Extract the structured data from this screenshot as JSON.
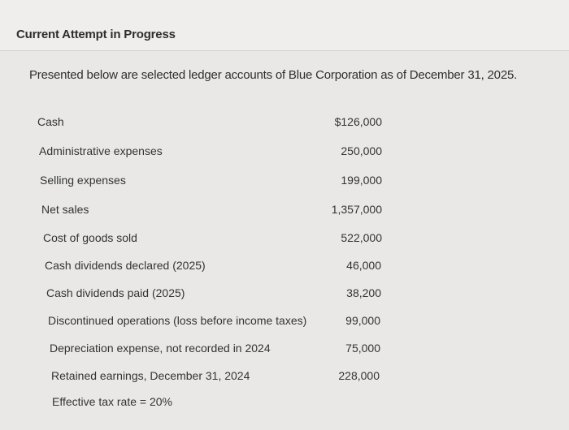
{
  "header": {
    "title": "Current Attempt in Progress"
  },
  "problem": {
    "intro": "Presented below are selected ledger accounts of Blue Corporation as of December 31, 2025.",
    "accounts": [
      {
        "label": "Cash",
        "value": "$126,000"
      },
      {
        "label": "Administrative expenses",
        "value": "250,000"
      },
      {
        "label": "Selling expenses",
        "value": "199,000"
      },
      {
        "label": "Net sales",
        "value": "1,357,000"
      },
      {
        "label": "Cost of goods sold",
        "value": "522,000"
      },
      {
        "label": "Cash dividends declared (2025)",
        "value": "46,000"
      },
      {
        "label": "Cash dividends paid (2025)",
        "value": "38,200"
      },
      {
        "label": "Discontinued operations (loss before income taxes)",
        "value": "99,000"
      },
      {
        "label": "Depreciation expense, not recorded in 2024",
        "value": "75,000"
      },
      {
        "label": "Retained earnings, December 31, 2024",
        "value": "228,000"
      }
    ],
    "note": "Effective tax rate = 20%"
  }
}
